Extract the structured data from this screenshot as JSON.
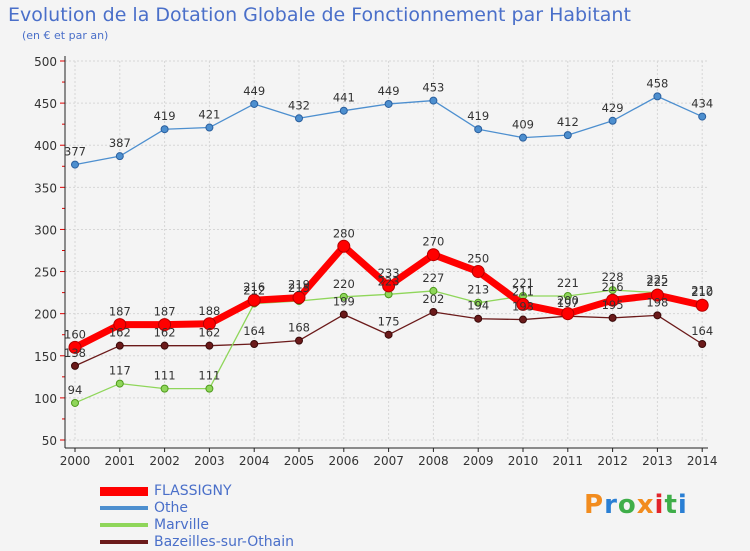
{
  "header": {
    "title": "Evolution de la Dotation Globale de Fonctionnement par Habitant",
    "subtitle": "(en € et par an)"
  },
  "logo": {
    "text": "Proxiti",
    "colors": [
      "#f28c1e",
      "#2a7fd4",
      "#3fae49",
      "#f28c1e",
      "#e2242b",
      "#3fae49",
      "#2a7fd4"
    ]
  },
  "chart_data": {
    "type": "line",
    "title": "Evolution de la Dotation Globale de Fonctionnement par Habitant",
    "subtitle": "(en € et par an)",
    "xlabel": "",
    "ylabel": "",
    "ylim": [
      50,
      500
    ],
    "yticks": [
      50,
      100,
      150,
      200,
      250,
      300,
      350,
      400,
      450,
      500
    ],
    "grid": true,
    "legend_position": "bottom",
    "x": [
      "2000",
      "2001",
      "2002",
      "2003",
      "2004",
      "2005",
      "2006",
      "2007",
      "2008",
      "2009",
      "2010",
      "2011",
      "2012",
      "2013",
      "2014"
    ],
    "series": [
      {
        "name": "FLASSIGNY",
        "color": "#ff0000",
        "values": [
          160,
          187,
          187,
          188,
          216,
          219,
          280,
          233,
          270,
          250,
          211,
          200,
          216,
          222,
          210
        ]
      },
      {
        "name": "Othe",
        "color": "#4d8fcf",
        "values": [
          377,
          387,
          419,
          421,
          449,
          432,
          441,
          449,
          453,
          419,
          409,
          412,
          429,
          458,
          434
        ]
      },
      {
        "name": "Marville",
        "color": "#8fd65a",
        "values": [
          94,
          117,
          111,
          111,
          212,
          215,
          220,
          223,
          227,
          213,
          221,
          221,
          228,
          225,
          212
        ]
      },
      {
        "name": "Bazeilles-sur-Othain",
        "color": "#6b1a1a",
        "values": [
          138,
          162,
          162,
          162,
          164,
          168,
          199,
          175,
          202,
          194,
          193,
          197,
          195,
          198,
          164
        ]
      }
    ]
  }
}
